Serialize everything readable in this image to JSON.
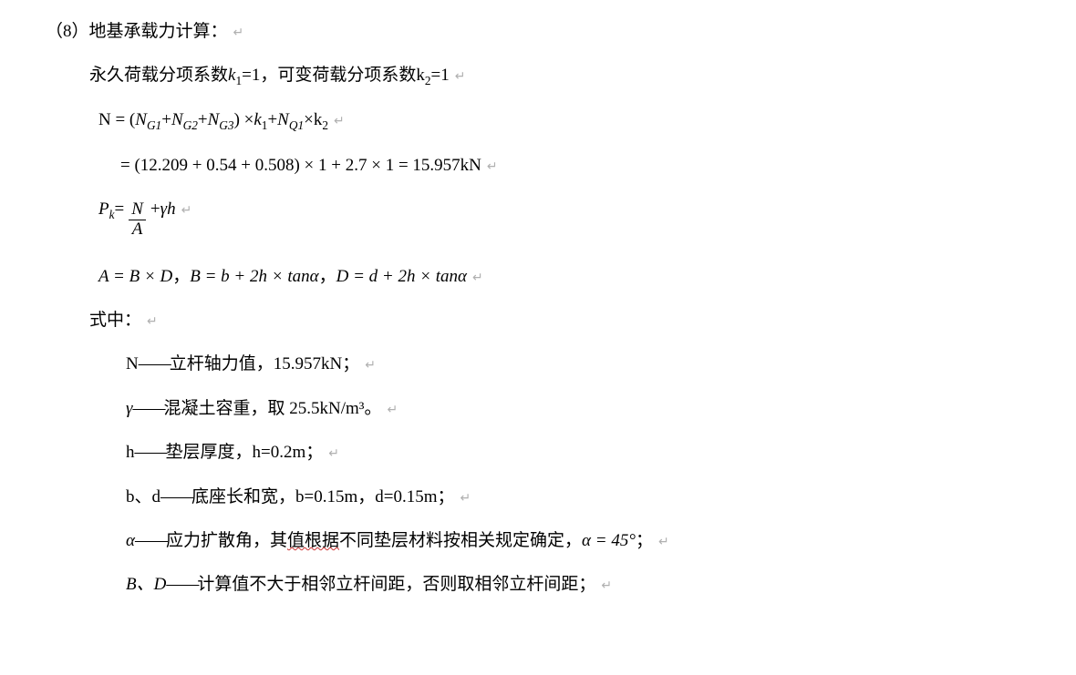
{
  "heading": {
    "prefix": "（8）",
    "text": "地基承载力计算：",
    "pmark": "↵"
  },
  "perm_line": {
    "text1": "永久荷载分项系数",
    "var1": "k",
    "sub1": "1",
    "eq1": "=1，",
    "text2": "可变荷载分项系数",
    "var2": "k",
    "sub2": "2",
    "eq2": "=1",
    "pmark": "↵"
  },
  "n_eq": {
    "text": "N = (",
    "ng1_v": "N",
    "ng1_s": "G1",
    "plus1": " + ",
    "ng2_v": "N",
    "ng2_s": "G2",
    "plus2": " + ",
    "ng3_v": "N",
    "ng3_s": "G3",
    "close": ") × ",
    "k1_v": "k",
    "k1_s": "1",
    "plus3": " + ",
    "nq1_v": "N",
    "nq1_s": "Q1",
    "times": " × ",
    "k2_v": "k",
    "k2_s": "2",
    "pmark": "↵"
  },
  "n_val": {
    "text": "= (12.209 + 0.54 + 0.508) × 1 + 2.7 × 1 = 15.957kN",
    "pmark": "↵"
  },
  "pk_eq": {
    "pk_v": "P",
    "pk_s": "k",
    "eq": " = ",
    "num": "N",
    "den": "A",
    "plus": " + ",
    "gamma": "γh",
    "pmark": "↵"
  },
  "abd_eq": {
    "a": "A = B × D",
    "sep1": "，",
    "b": "B = b + 2h × tanα",
    "sep2": "，",
    "d": "D = d + 2h × tanα",
    "pmark": "↵"
  },
  "where": {
    "text": "式中：",
    "pmark": "↵"
  },
  "def_n": {
    "sym": "N",
    "dash": "——",
    "text": "立杆轴力值，15.957kN；",
    "pmark": "↵"
  },
  "def_gamma": {
    "sym": "γ",
    "dash": "——",
    "text": "混凝土容重，取 25.5kN/m³。",
    "pmark": "↵"
  },
  "def_h": {
    "sym": "h",
    "dash": "——",
    "text": "垫层厚度，h=0.2m；",
    "pmark": "↵"
  },
  "def_bd": {
    "sym": "b、d",
    "dash": "——",
    "text": "底座长和宽，b=0.15m，d=0.15m；",
    "pmark": "↵"
  },
  "def_alpha": {
    "sym": "α",
    "dash": "——",
    "text1": "应力扩散角，其",
    "underlined": "值根据",
    "text2": "不同垫层材料按相关规定确定，",
    "alpha_eq": "α = 45°",
    "tail": "；",
    "pmark": "↵"
  },
  "def_BD": {
    "sym": "B、D",
    "dash": "——",
    "text": "计算值不大于相邻立杆间距，否则取相邻立杆间距；",
    "pmark": "↵"
  }
}
